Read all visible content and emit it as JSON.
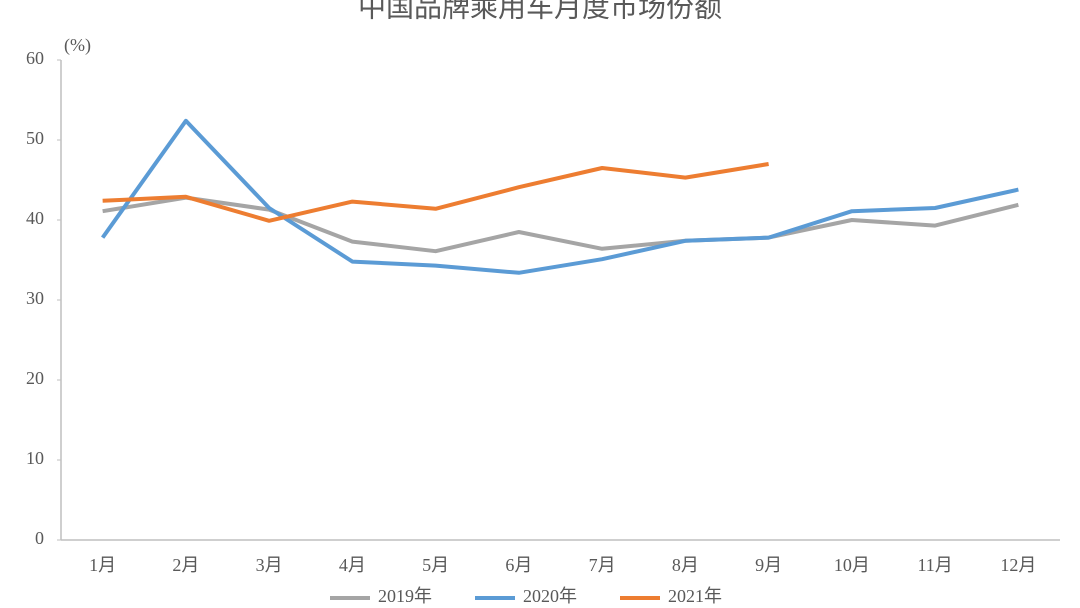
{
  "chart_data": {
    "type": "line",
    "title": "中国品牌乘用车月度市场份额",
    "y_label": "(%)",
    "categories": [
      "1月",
      "2月",
      "3月",
      "4月",
      "5月",
      "6月",
      "7月",
      "8月",
      "9月",
      "10月",
      "11月",
      "12月"
    ],
    "series": [
      {
        "name": "2019年",
        "color": "#a5a5a5",
        "values": [
          41.1,
          42.8,
          41.3,
          37.3,
          36.1,
          38.5,
          36.4,
          37.4,
          37.8,
          40.0,
          39.3,
          41.9
        ]
      },
      {
        "name": "2020年",
        "color": "#5b9bd5",
        "values": [
          37.8,
          52.4,
          41.5,
          34.8,
          34.3,
          33.4,
          35.1,
          37.4,
          37.8,
          41.1,
          41.5,
          43.8
        ]
      },
      {
        "name": "2021年",
        "color": "#ed7d31",
        "values": [
          42.4,
          42.9,
          39.9,
          42.3,
          41.4,
          44.1,
          46.5,
          45.3,
          47.0,
          null,
          null,
          null
        ]
      }
    ],
    "ylim": [
      0,
      60
    ],
    "yticks": [
      0,
      10,
      20,
      30,
      40,
      50,
      60
    ],
    "grid": false,
    "legend": "bottom"
  }
}
